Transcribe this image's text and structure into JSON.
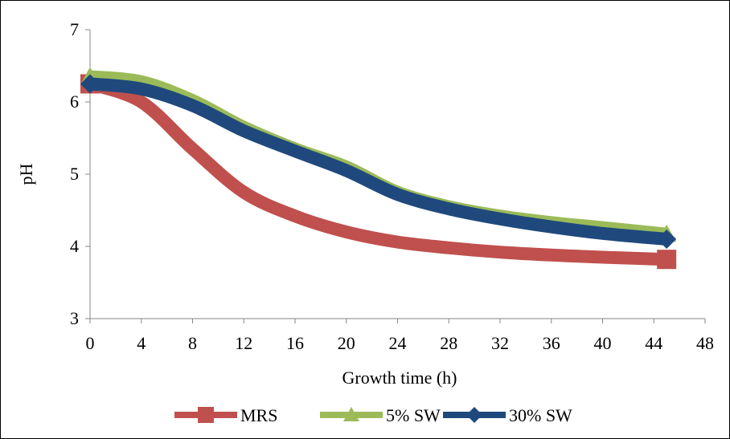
{
  "chart_data": {
    "type": "line",
    "xlabel": "Growth time (h)",
    "ylabel": "pH",
    "xlim": [
      0,
      48
    ],
    "ylim": [
      3,
      7
    ],
    "x_ticks": [
      "0",
      "4",
      "8",
      "12",
      "16",
      "20",
      "24",
      "28",
      "32",
      "36",
      "40",
      "44",
      "48"
    ],
    "y_ticks": [
      "3",
      "4",
      "5",
      "6",
      "7"
    ],
    "legend_position": "bottom",
    "smooth": true,
    "x": [
      0,
      4,
      8,
      12,
      16,
      20,
      24,
      28,
      32,
      36,
      40,
      45
    ],
    "series": [
      {
        "name": "MRS",
        "color": "#c0504d",
        "marker": "square",
        "marker_points": [
          0,
          11
        ],
        "values": [
          6.25,
          6.0,
          5.35,
          4.75,
          4.42,
          4.2,
          4.06,
          3.98,
          3.92,
          3.88,
          3.85,
          3.82
        ]
      },
      {
        "name": "5% SW",
        "color": "#9bbb59",
        "marker": "triangle",
        "marker_points": [
          0,
          11
        ],
        "values": [
          6.35,
          6.28,
          6.02,
          5.65,
          5.35,
          5.1,
          4.75,
          4.55,
          4.42,
          4.33,
          4.26,
          4.17
        ]
      },
      {
        "name": "30% SW",
        "color": "#1f497d",
        "marker": "diamond",
        "marker_points": [
          0,
          11
        ],
        "values": [
          6.25,
          6.18,
          5.95,
          5.6,
          5.32,
          5.05,
          4.72,
          4.52,
          4.38,
          4.27,
          4.18,
          4.1
        ]
      }
    ]
  }
}
